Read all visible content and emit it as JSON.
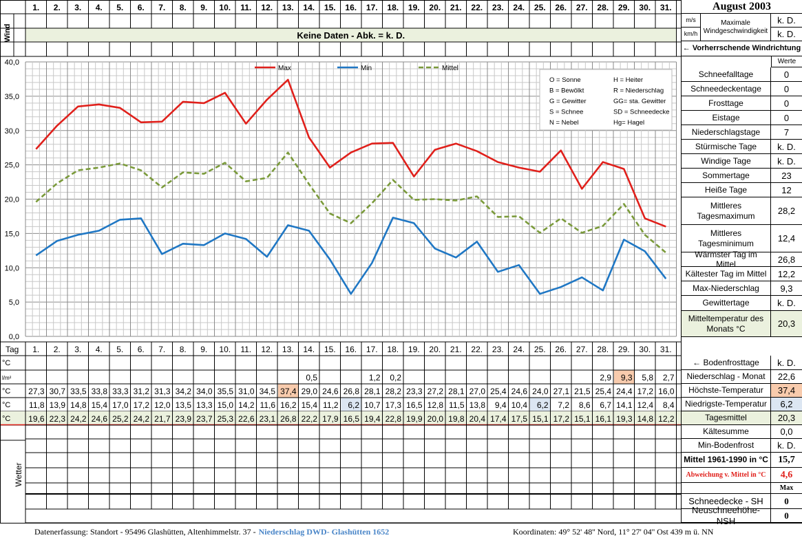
{
  "days": [
    "1.",
    "2.",
    "3.",
    "4.",
    "5.",
    "6.",
    "7.",
    "8.",
    "9.",
    "10.",
    "11.",
    "12.",
    "13.",
    "14.",
    "15.",
    "16.",
    "17.",
    "18.",
    "19.",
    "20.",
    "21.",
    "22.",
    "23.",
    "24.",
    "25.",
    "26.",
    "27.",
    "28.",
    "29.",
    "30.",
    "31."
  ],
  "wind": {
    "label": "Wind",
    "no_data": "Keine Daten - Abk. = k. D.",
    "unit_ms": "m/s",
    "unit_kmh": "km/h",
    "max_label_1": "Maximale",
    "max_label_2": "Windgeschwindigkeit",
    "val_ms": "k. D.",
    "val_kmh": "k. D.",
    "direction": "← Vorherrschende Windrichtung"
  },
  "month_title": "August 2003",
  "stats_header": "Werte",
  "stats": [
    {
      "label": "Schneefalltage",
      "value": "0"
    },
    {
      "label": "Schneedeckentage",
      "value": "0"
    },
    {
      "label": "Frosttage",
      "value": "0"
    },
    {
      "label": "Eistage",
      "value": "0"
    },
    {
      "label": "Niederschlagstage",
      "value": "7"
    },
    {
      "label": "Stürmische Tage",
      "value": "k. D."
    },
    {
      "label": "Windige Tage",
      "value": "k. D."
    },
    {
      "label": "Sommertage",
      "value": "23"
    },
    {
      "label": "Heiße Tage",
      "value": "12"
    },
    {
      "label": "Mittleres Tagesmaximum",
      "value": "28,2"
    },
    {
      "label": "Mittleres Tagesminimum",
      "value": "12,4"
    },
    {
      "label": "Wärmster Tag im Mittel",
      "value": "26,8"
    },
    {
      "label": "Kältester Tag im Mittel",
      "value": "12,2"
    },
    {
      "label": "Max-Niederschlag",
      "value": "9,3"
    },
    {
      "label": "Gewittertage",
      "value": "k. D."
    },
    {
      "label": "Mitteltemperatur des Monats °C",
      "value": "20,3"
    }
  ],
  "legend_codes": [
    [
      "O = Sonne",
      "H = Heiter"
    ],
    [
      "B = Bewölkt",
      "R = Niederschlag"
    ],
    [
      "G = Gewitter",
      "GG= sta. Gewitter"
    ],
    [
      "S = Schnee",
      "SD = Schneedecke"
    ],
    [
      "N = Nebel",
      "Hg= Hagel"
    ]
  ],
  "chart_data": {
    "type": "line",
    "categories": [
      "1",
      "2",
      "3",
      "4",
      "5",
      "6",
      "7",
      "8",
      "9",
      "10",
      "11",
      "12",
      "13",
      "14",
      "15",
      "16",
      "17",
      "18",
      "19",
      "20",
      "21",
      "22",
      "23",
      "24",
      "25",
      "26",
      "27",
      "28",
      "29",
      "30",
      "31"
    ],
    "series": [
      {
        "name": "Max",
        "color": "#e0201b",
        "style": "solid",
        "values": [
          27.3,
          30.7,
          33.5,
          33.8,
          33.3,
          31.2,
          31.3,
          34.2,
          34.0,
          35.5,
          31.0,
          34.5,
          37.4,
          29.0,
          24.6,
          26.8,
          28.1,
          28.2,
          23.3,
          27.2,
          28.1,
          27.0,
          25.4,
          24.6,
          24.0,
          27.1,
          21.5,
          25.4,
          24.4,
          17.2,
          16.0
        ]
      },
      {
        "name": "Min",
        "color": "#1f77c4",
        "style": "solid",
        "values": [
          11.8,
          13.9,
          14.8,
          15.4,
          17.0,
          17.2,
          12.0,
          13.5,
          13.3,
          15.0,
          14.2,
          11.6,
          16.2,
          15.4,
          11.2,
          6.2,
          10.7,
          17.3,
          16.5,
          12.8,
          11.5,
          13.8,
          9.4,
          10.4,
          6.2,
          7.2,
          8.6,
          6.7,
          14.1,
          12.4,
          8.4
        ]
      },
      {
        "name": "Mittel",
        "color": "#7a9a3a",
        "style": "dashed",
        "values": [
          19.6,
          22.3,
          24.2,
          24.6,
          25.2,
          24.2,
          21.7,
          23.9,
          23.7,
          25.3,
          22.6,
          23.1,
          26.8,
          22.2,
          17.9,
          16.5,
          19.4,
          22.8,
          19.9,
          20.0,
          19.8,
          20.4,
          17.4,
          17.5,
          15.1,
          17.2,
          15.1,
          16.1,
          19.3,
          14.8,
          12.2
        ]
      }
    ],
    "ylim": [
      0,
      40
    ],
    "yticks": [
      "0,0",
      "5,0",
      "10,0",
      "15,0",
      "20,0",
      "25,0",
      "30,0",
      "35,0",
      "40,0"
    ],
    "grid": true,
    "legend_position": "top-center"
  },
  "table": {
    "tag_label": "Tag",
    "rows": [
      {
        "unit": "°C",
        "label": "← Bodenfrosttage",
        "total": "k. D.",
        "values": [
          "",
          "",
          "",
          "",
          "",
          "",
          "",
          "",
          "",
          "",
          "",
          "",
          "",
          "",
          "",
          "",
          "",
          "",
          "",
          "",
          "",
          "",
          "",
          "",
          "",
          "",
          "",
          "",
          "",
          "",
          ""
        ]
      },
      {
        "unit": "l/m²",
        "label": "Niederschlag - Monat",
        "total": "22,6",
        "values": [
          "",
          "",
          "",
          "",
          "",
          "",
          "",
          "",
          "",
          "",
          "",
          "",
          "",
          "0,5",
          "",
          "",
          "1,2",
          "0,2",
          "",
          "",
          "",
          "",
          "",
          "",
          "",
          "",
          "",
          "2,9",
          "9,3",
          "5,8",
          "2,7"
        ]
      },
      {
        "unit": "°C",
        "label": "Höchste-Temperatur",
        "total": "37,4",
        "values": [
          "27,3",
          "30,7",
          "33,5",
          "33,8",
          "33,3",
          "31,2",
          "31,3",
          "34,2",
          "34,0",
          "35,5",
          "31,0",
          "34,5",
          "37,4",
          "29,0",
          "24,6",
          "26,8",
          "28,1",
          "28,2",
          "23,3",
          "27,2",
          "28,1",
          "27,0",
          "25,4",
          "24,6",
          "24,0",
          "27,1",
          "21,5",
          "25,4",
          "24,4",
          "17,2",
          "16,0"
        ]
      },
      {
        "unit": "°C",
        "label": "Niedrigste-Temperatur",
        "total": "6,2",
        "values": [
          "11,8",
          "13,9",
          "14,8",
          "15,4",
          "17,0",
          "17,2",
          "12,0",
          "13,5",
          "13,3",
          "15,0",
          "14,2",
          "11,6",
          "16,2",
          "15,4",
          "11,2",
          "6,2",
          "10,7",
          "17,3",
          "16,5",
          "12,8",
          "11,5",
          "13,8",
          "9,4",
          "10,4",
          "6,2",
          "7,2",
          "8,6",
          "6,7",
          "14,1",
          "12,4",
          "8,4"
        ]
      },
      {
        "unit": "°C",
        "label": "Tagesmittel",
        "total": "20,3",
        "values": [
          "19,6",
          "22,3",
          "24,2",
          "24,6",
          "25,2",
          "24,2",
          "21,7",
          "23,9",
          "23,7",
          "25,3",
          "22,6",
          "23,1",
          "26,8",
          "22,2",
          "17,9",
          "16,5",
          "19,4",
          "22,8",
          "19,9",
          "20,0",
          "19,8",
          "20,4",
          "17,4",
          "17,5",
          "15,1",
          "17,2",
          "15,1",
          "16,1",
          "19,3",
          "14,8",
          "12,2"
        ]
      }
    ]
  },
  "wetter_label": "Wetter",
  "lower_stats": [
    {
      "label": "Kältesumme",
      "value": "0,0"
    },
    {
      "label": "Min-Bodenfrost",
      "value": "k. D."
    },
    {
      "label": "Mittel 1961-1990 in °C",
      "value": "15,7"
    },
    {
      "label": "Abweichung v. Mittel in °C",
      "value": "4,6"
    },
    {
      "label": "",
      "value": "Max"
    }
  ],
  "snow_stats": [
    {
      "label": "Schneedecke -   SH",
      "value": "0"
    },
    {
      "label": "Neuschneehöhe- NSH",
      "value": "0"
    }
  ],
  "footer": {
    "left": "Datenerfassung:  Standort -   95496  Glashütten, Altenhimmelstr. 37 - ",
    "highlight": "Niederschlag DWD- Glashütten 1652",
    "coords": "Koordinaten:  49° 52' 48'' Nord,    11° 27' 04'' Ost   439 m ü. NN"
  }
}
